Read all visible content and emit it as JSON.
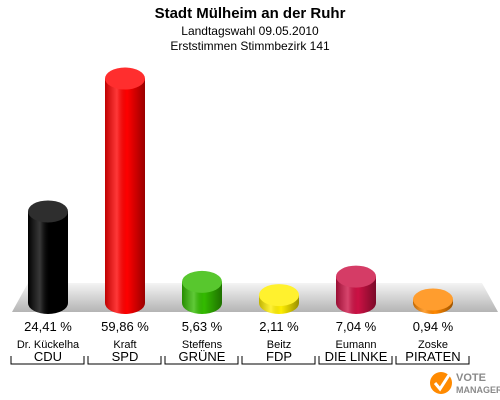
{
  "title": "Stadt Mülheim an der Ruhr",
  "subtitle1": "Landtagswahl 09.05.2010",
  "subtitle2": "Erststimmen Stimmbezirk 141",
  "chart_data": {
    "type": "bar",
    "title": "Stadt Mülheim an der Ruhr",
    "xlabel": "",
    "ylabel": "",
    "ylim": [
      0,
      60
    ],
    "grid": false,
    "legend": "none",
    "categories": [
      "CDU",
      "SPD",
      "GRÜNE",
      "FDP",
      "DIE LINKE",
      "PIRATEN"
    ],
    "candidates": [
      "Dr. Kückelha",
      "Kraft",
      "Steffens",
      "Beitz",
      "Eumann",
      "Zoske"
    ],
    "values": [
      24.41,
      59.86,
      5.63,
      2.11,
      7.04,
      0.94
    ],
    "value_labels": [
      "24,41 %",
      "59,86 %",
      "5,63 %",
      "2,11 %",
      "7,04 %",
      "0,94 %"
    ],
    "colors": [
      "#000000",
      "#ff0000",
      "#33bb00",
      "#ffee00",
      "#cc1144",
      "#ff8800"
    ]
  },
  "logo": {
    "line1": "VOTE",
    "line2": "MANAGER",
    "icon": "checkmark-ballot-icon"
  }
}
